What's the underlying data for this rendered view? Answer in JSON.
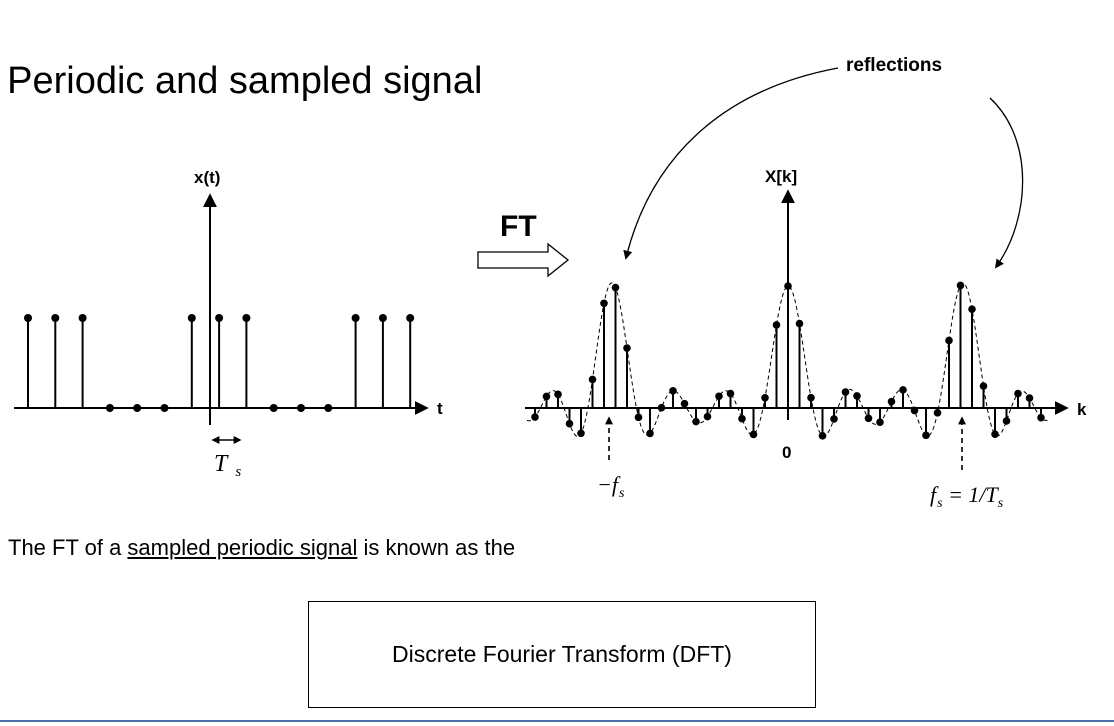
{
  "title": ". Periodic and sampled signal",
  "annotation": "reflections",
  "ft_label": "FT",
  "left_plot": {
    "y_axis_label": "x(t)",
    "x_axis_label": "t",
    "spacing_label_main": "T",
    "spacing_label_sub": "s",
    "samples": [
      1,
      1,
      1,
      0,
      0,
      0,
      1,
      1,
      1,
      0,
      0,
      0,
      1,
      1,
      1
    ]
  },
  "right_plot": {
    "y_axis_label": "X[k]",
    "x_axis_label": "k",
    "zero_label": "0",
    "neg_fs_main": "−f",
    "neg_fs_sub": "s",
    "pos_fs_main": "f",
    "pos_fs_sub": "s",
    "pos_fs_rest": " = 1/T",
    "pos_fs_rest_sub": "s"
  },
  "body": {
    "prefix": "The FT of a ",
    "underlined": "sampled periodic signal",
    "suffix": " is known as the"
  },
  "answer": "Discrete Fourier Transform (DFT)"
}
